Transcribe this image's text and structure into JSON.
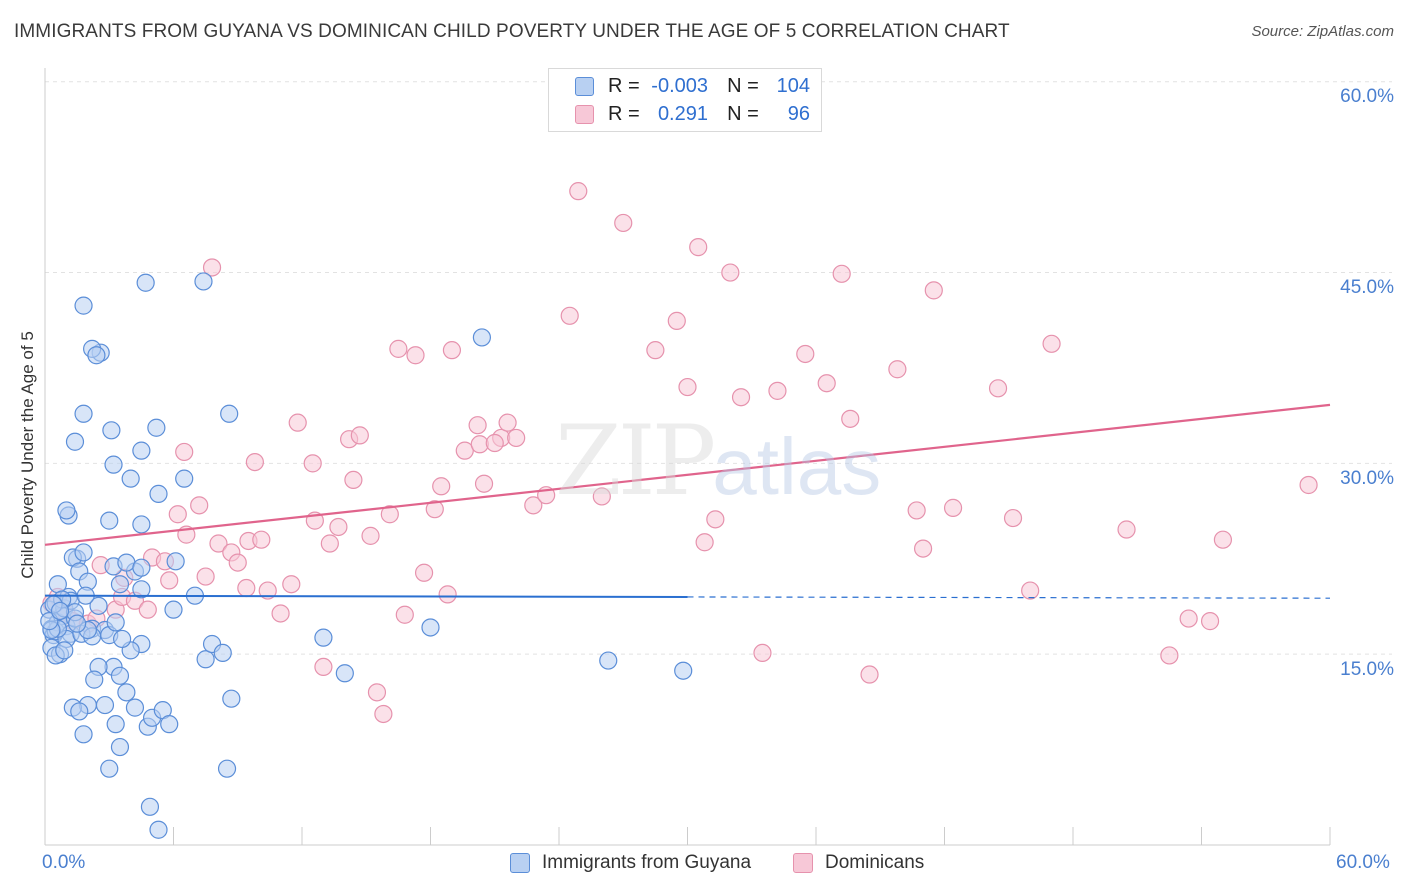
{
  "title": "IMMIGRANTS FROM GUYANA VS DOMINICAN CHILD POVERTY UNDER THE AGE OF 5 CORRELATION CHART",
  "source": "Source: ZipAtlas.com",
  "watermark": {
    "zip": "ZIP",
    "atlas": "atlas"
  },
  "legend": {
    "rows": [
      {
        "r_label": "R =",
        "r_value": "-0.003",
        "n_label": "N =",
        "n_value": "104"
      },
      {
        "r_label": "R =",
        "r_value": "0.291",
        "n_label": "N =",
        "n_value": "96"
      }
    ]
  },
  "colors": {
    "blue_fill": "#b8d0f2",
    "blue_stroke": "#5b8ed8",
    "blue_line": "#2a6fd0",
    "pink_fill": "#f7c8d7",
    "pink_stroke": "#e692ad",
    "pink_line": "#e0648c",
    "grid": "#e2e2e2",
    "axis": "#cccccc"
  },
  "chart_data": {
    "type": "scatter",
    "title": "IMMIGRANTS FROM GUYANA VS DOMINICAN CHILD POVERTY UNDER THE AGE OF 5 CORRELATION CHART",
    "xlabel": "",
    "ylabel": "Child Poverty Under the Age of 5",
    "xlim": [
      0,
      60
    ],
    "ylim": [
      0,
      60
    ],
    "x_tick_labels": [
      "0.0%",
      "60.0%"
    ],
    "y_ticks": [
      15,
      30,
      45,
      60
    ],
    "y_tick_labels": [
      "15.0%",
      "30.0%",
      "45.0%",
      "60.0%"
    ],
    "grid": true,
    "legend_position": "top-center",
    "series": [
      {
        "name": "Immigrants from Guyana",
        "r": -0.003,
        "n": 104,
        "trend": {
          "x0": 0,
          "y0": 19.6,
          "x1": 30,
          "y1": 19.5,
          "dashed_to_x": 60,
          "dashed_y": 19.4
        },
        "points": [
          [
            0.2,
            18.5
          ],
          [
            0.3,
            17.0
          ],
          [
            0.4,
            16.5
          ],
          [
            0.5,
            19.0
          ],
          [
            0.6,
            17.5
          ],
          [
            0.3,
            15.5
          ],
          [
            0.8,
            18.0
          ],
          [
            0.5,
            16.8
          ],
          [
            1.0,
            17.2
          ],
          [
            0.7,
            15.0
          ],
          [
            1.2,
            16.6
          ],
          [
            0.9,
            18.6
          ],
          [
            1.4,
            17.8
          ],
          [
            1.1,
            19.5
          ],
          [
            0.6,
            20.5
          ],
          [
            1.5,
            22.5
          ],
          [
            1.3,
            22.6
          ],
          [
            1.8,
            23.0
          ],
          [
            1.6,
            21.5
          ],
          [
            2.0,
            20.7
          ],
          [
            2.5,
            18.8
          ],
          [
            2.2,
            17.0
          ],
          [
            2.8,
            16.9
          ],
          [
            3.0,
            16.5
          ],
          [
            3.2,
            14.0
          ],
          [
            2.5,
            14.0
          ],
          [
            2.3,
            13.0
          ],
          [
            3.5,
            13.3
          ],
          [
            2.0,
            11.0
          ],
          [
            2.8,
            11.0
          ],
          [
            3.8,
            12.0
          ],
          [
            1.3,
            10.8
          ],
          [
            1.6,
            10.5
          ],
          [
            1.8,
            8.7
          ],
          [
            3.3,
            9.5
          ],
          [
            4.2,
            10.8
          ],
          [
            3.5,
            7.7
          ],
          [
            3.0,
            6.0
          ],
          [
            4.8,
            9.3
          ],
          [
            5.0,
            10.0
          ],
          [
            5.5,
            10.6
          ],
          [
            5.8,
            9.5
          ],
          [
            4.9,
            3.0
          ],
          [
            5.3,
            1.2
          ],
          [
            8.5,
            6.0
          ],
          [
            8.7,
            11.5
          ],
          [
            4.5,
            15.8
          ],
          [
            4.0,
            15.3
          ],
          [
            3.6,
            16.2
          ],
          [
            3.3,
            17.5
          ],
          [
            3.5,
            20.5
          ],
          [
            4.5,
            20.1
          ],
          [
            4.2,
            21.5
          ],
          [
            3.2,
            21.9
          ],
          [
            3.8,
            22.2
          ],
          [
            4.5,
            21.8
          ],
          [
            1.1,
            25.9
          ],
          [
            1.0,
            26.3
          ],
          [
            3.0,
            25.5
          ],
          [
            4.5,
            25.2
          ],
          [
            5.3,
            27.6
          ],
          [
            6.5,
            28.8
          ],
          [
            4.0,
            28.8
          ],
          [
            3.2,
            29.9
          ],
          [
            6.1,
            22.3
          ],
          [
            4.5,
            31.0
          ],
          [
            5.2,
            32.8
          ],
          [
            1.4,
            31.7
          ],
          [
            3.1,
            32.6
          ],
          [
            1.8,
            33.9
          ],
          [
            8.6,
            33.9
          ],
          [
            2.6,
            38.7
          ],
          [
            2.2,
            39.0
          ],
          [
            2.4,
            38.5
          ],
          [
            1.8,
            42.4
          ],
          [
            4.7,
            44.2
          ],
          [
            7.4,
            44.3
          ],
          [
            20.4,
            39.9
          ],
          [
            14.0,
            13.5
          ],
          [
            18.0,
            17.1
          ],
          [
            26.3,
            14.5
          ],
          [
            29.8,
            13.7
          ],
          [
            13.0,
            16.3
          ],
          [
            1.2,
            19.2
          ],
          [
            1.4,
            18.3
          ],
          [
            1.9,
            19.6
          ],
          [
            0.8,
            19.3
          ],
          [
            0.4,
            18.9
          ],
          [
            1.0,
            16.2
          ],
          [
            0.6,
            17.0
          ],
          [
            0.5,
            14.9
          ],
          [
            1.7,
            16.6
          ],
          [
            2.2,
            16.4
          ],
          [
            0.9,
            15.3
          ],
          [
            0.3,
            16.9
          ],
          [
            6.0,
            18.5
          ],
          [
            7.5,
            14.6
          ],
          [
            7.8,
            15.8
          ],
          [
            8.3,
            15.1
          ],
          [
            7.0,
            19.6
          ],
          [
            2.0,
            16.9
          ],
          [
            1.5,
            17.4
          ],
          [
            0.2,
            17.6
          ],
          [
            0.7,
            18.4
          ]
        ]
      },
      {
        "name": "Dominicans",
        "r": 0.291,
        "n": 96,
        "trend": {
          "x0": 0,
          "y0": 23.6,
          "x1": 60,
          "y1": 34.6
        },
        "points": [
          [
            0.3,
            19.0
          ],
          [
            0.6,
            19.5
          ],
          [
            1.0,
            18.2
          ],
          [
            1.3,
            17.6
          ],
          [
            2.0,
            17.4
          ],
          [
            2.4,
            17.8
          ],
          [
            2.6,
            22.0
          ],
          [
            3.3,
            18.5
          ],
          [
            3.6,
            19.5
          ],
          [
            4.2,
            19.2
          ],
          [
            3.7,
            21.0
          ],
          [
            4.8,
            18.5
          ],
          [
            5.0,
            22.6
          ],
          [
            5.6,
            22.3
          ],
          [
            5.8,
            20.8
          ],
          [
            6.6,
            24.4
          ],
          [
            7.2,
            26.7
          ],
          [
            7.5,
            21.1
          ],
          [
            8.1,
            23.7
          ],
          [
            8.7,
            23.0
          ],
          [
            9.0,
            22.2
          ],
          [
            9.4,
            20.2
          ],
          [
            9.5,
            23.9
          ],
          [
            10.1,
            24.0
          ],
          [
            10.4,
            20.0
          ],
          [
            11.0,
            18.2
          ],
          [
            11.5,
            20.5
          ],
          [
            12.6,
            25.5
          ],
          [
            13.3,
            23.7
          ],
          [
            13.7,
            25.0
          ],
          [
            13.0,
            14.0
          ],
          [
            14.4,
            28.7
          ],
          [
            15.2,
            24.3
          ],
          [
            15.5,
            12.0
          ],
          [
            15.8,
            10.3
          ],
          [
            16.1,
            26.0
          ],
          [
            16.8,
            18.1
          ],
          [
            17.7,
            21.4
          ],
          [
            18.2,
            26.4
          ],
          [
            18.5,
            28.2
          ],
          [
            18.8,
            19.7
          ],
          [
            19.6,
            31.0
          ],
          [
            20.2,
            33.0
          ],
          [
            20.5,
            28.4
          ],
          [
            21.3,
            32.0
          ],
          [
            21.6,
            33.2
          ],
          [
            22.0,
            32.0
          ],
          [
            22.8,
            26.7
          ],
          [
            23.4,
            27.5
          ],
          [
            24.5,
            41.6
          ],
          [
            24.9,
            51.4
          ],
          [
            26.0,
            27.4
          ],
          [
            27.0,
            48.9
          ],
          [
            28.5,
            38.9
          ],
          [
            29.5,
            41.2
          ],
          [
            30.0,
            36.0
          ],
          [
            30.5,
            47.0
          ],
          [
            30.8,
            23.8
          ],
          [
            31.3,
            25.6
          ],
          [
            32.0,
            45.0
          ],
          [
            32.5,
            35.2
          ],
          [
            33.5,
            15.1
          ],
          [
            34.2,
            35.7
          ],
          [
            35.5,
            38.6
          ],
          [
            36.5,
            36.3
          ],
          [
            37.2,
            44.9
          ],
          [
            37.6,
            33.5
          ],
          [
            38.5,
            13.4
          ],
          [
            39.8,
            37.4
          ],
          [
            40.7,
            26.3
          ],
          [
            41.0,
            23.3
          ],
          [
            41.5,
            43.6
          ],
          [
            42.4,
            26.5
          ],
          [
            44.5,
            35.9
          ],
          [
            45.2,
            25.7
          ],
          [
            46.0,
            20.0
          ],
          [
            47.0,
            39.4
          ],
          [
            50.5,
            24.8
          ],
          [
            52.5,
            14.9
          ],
          [
            53.4,
            17.8
          ],
          [
            54.4,
            17.6
          ],
          [
            55.0,
            24.0
          ],
          [
            59.0,
            28.3
          ],
          [
            6.2,
            26.0
          ],
          [
            6.5,
            30.9
          ],
          [
            9.8,
            30.1
          ],
          [
            11.8,
            33.2
          ],
          [
            12.5,
            30.0
          ],
          [
            14.2,
            31.9
          ],
          [
            14.7,
            32.2
          ],
          [
            16.5,
            39.0
          ],
          [
            17.3,
            38.5
          ],
          [
            19.0,
            38.9
          ],
          [
            20.3,
            31.5
          ],
          [
            21.0,
            31.6
          ],
          [
            7.8,
            45.4
          ]
        ]
      }
    ]
  },
  "bottom_legend": [
    {
      "label": "Immigrants from Guyana"
    },
    {
      "label": "Dominicans"
    }
  ]
}
